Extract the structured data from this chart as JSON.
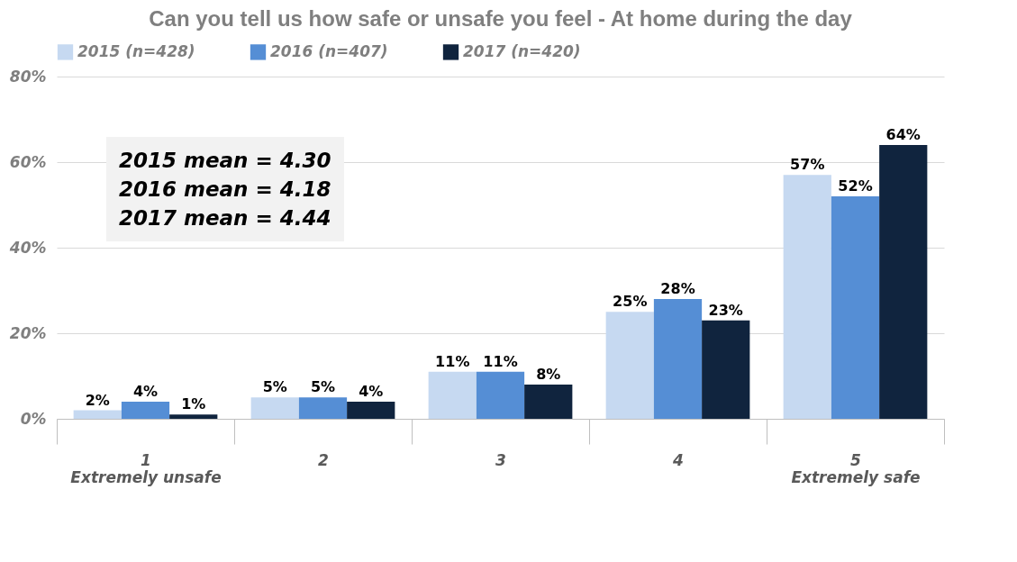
{
  "chart_data": {
    "type": "bar",
    "title": "Can you tell us how safe or unsafe you feel - At home during the day",
    "categories": [
      "1\nExtremely unsafe",
      "2",
      "3",
      "4",
      "5\nExtremely safe"
    ],
    "series": [
      {
        "name": "2015 (n=428)",
        "color": "#c6d9f1",
        "values": [
          2,
          5,
          11,
          25,
          57
        ],
        "value_labels": [
          "2%",
          "5%",
          "11%",
          "25%",
          "57%"
        ]
      },
      {
        "name": "2016 (n=407)",
        "color": "#558ed5",
        "values": [
          4,
          5,
          11,
          28,
          52
        ],
        "value_labels": [
          "4%",
          "5%",
          "11%",
          "28%",
          "52%"
        ]
      },
      {
        "name": "2017 (n=420)",
        "color": "#10243e",
        "values": [
          1,
          4,
          8,
          23,
          64
        ],
        "value_labels": [
          "1%",
          "4%",
          "8%",
          "23%",
          "64%"
        ]
      }
    ],
    "ylim": [
      0,
      80
    ],
    "yticks": [
      {
        "value": 0,
        "label": "0%"
      },
      {
        "value": 20,
        "label": "20%"
      },
      {
        "value": 40,
        "label": "40%"
      },
      {
        "value": 60,
        "label": "60%"
      },
      {
        "value": 80,
        "label": "80%"
      }
    ],
    "grid": "y",
    "legend": "top",
    "annotations": [
      "2015 mean = 4.30",
      "2016 mean = 4.18",
      "2017 mean = 4.44"
    ]
  }
}
